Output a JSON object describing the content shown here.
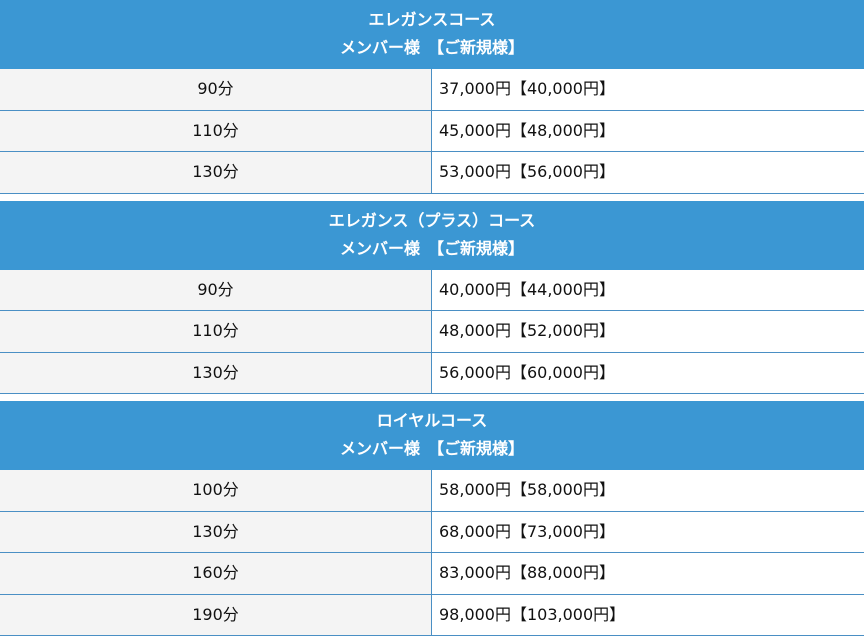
{
  "sections": [
    {
      "title": "エレガンスコース",
      "subtitle": "メンバー様　【ご新規様】",
      "rows": [
        {
          "duration": "90分",
          "price": "37,000円【40,000円】"
        },
        {
          "duration": "110分",
          "price": "45,000円【48,000円】"
        },
        {
          "duration": "130分",
          "price": "53,000円【56,000円】"
        }
      ]
    },
    {
      "title": "エレガンス（プラス）コース",
      "subtitle": "メンバー様　【ご新規様】",
      "rows": [
        {
          "duration": "90分",
          "price": "40,000円【44,000円】"
        },
        {
          "duration": "110分",
          "price": "48,000円【52,000円】"
        },
        {
          "duration": "130分",
          "price": "56,000円【60,000円】"
        }
      ]
    },
    {
      "title": "ロイヤルコース",
      "subtitle": "メンバー様　【ご新規様】",
      "rows": [
        {
          "duration": "100分",
          "price": "58,000円【58,000円】"
        },
        {
          "duration": "130分",
          "price": "68,000円【73,000円】"
        },
        {
          "duration": "160分",
          "price": "83,000円【88,000円】"
        },
        {
          "duration": "190分",
          "price": "98,000円【103,000円】"
        }
      ]
    }
  ],
  "colors": {
    "header_bg": "#3b97d3",
    "border": "#4a8fc4",
    "label_bg": "#f4f4f4"
  }
}
